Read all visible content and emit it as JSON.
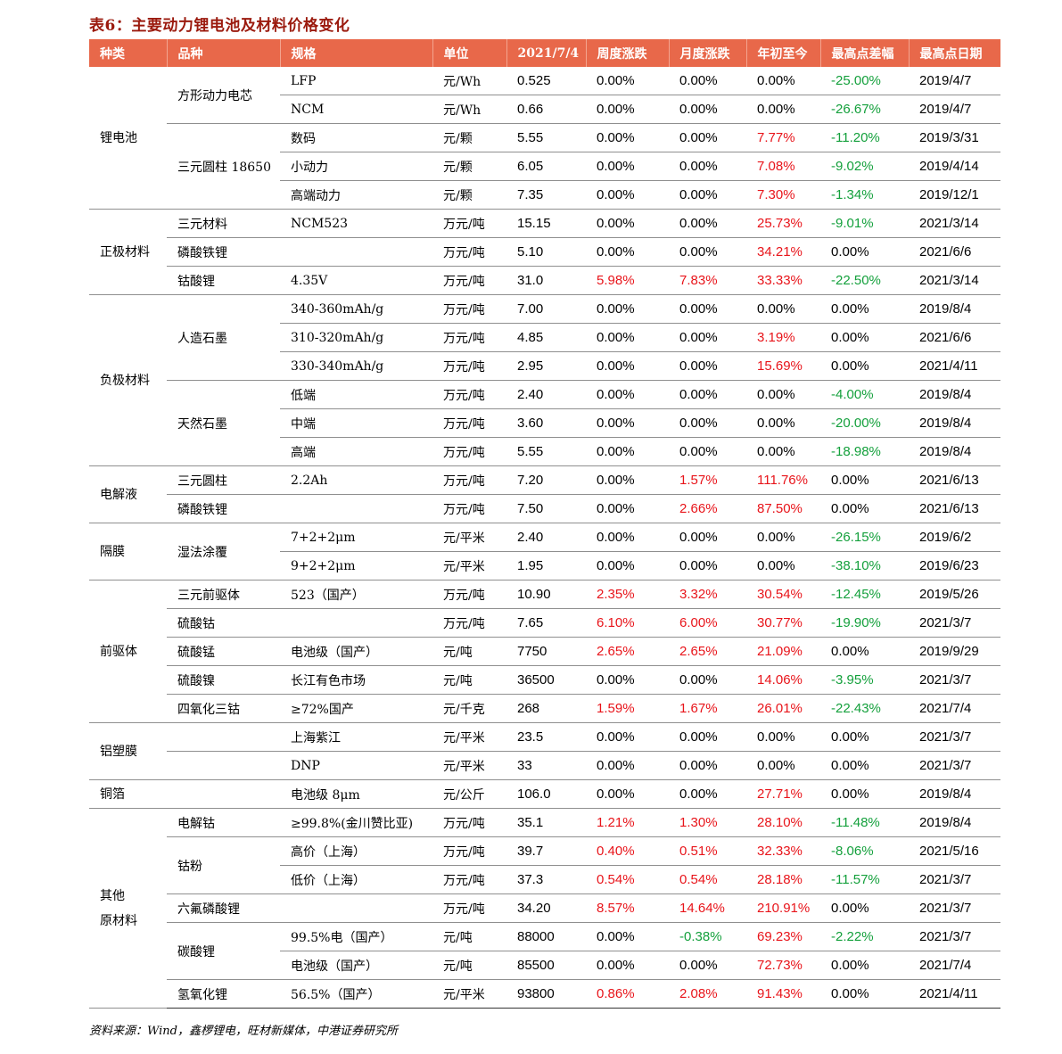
{
  "title": "表6：主要动力锂电池及材料价格变化",
  "source": "资料来源：Wind，鑫椤锂电，旺材新媒体，中港证券研究所",
  "headers": [
    "种类",
    "品种",
    "规格",
    "单位",
    "2021/7/4",
    "周度涨跌",
    "月度涨跌",
    "年初至今",
    "最高点差幅",
    "最高点日期"
  ],
  "categories": [
    {
      "label": "锂电池",
      "rows": 5
    },
    {
      "label": "正极材料",
      "rows": 3
    },
    {
      "label": "负极材料",
      "rows": 6
    },
    {
      "label": "电解液",
      "rows": 2
    },
    {
      "label": "隔膜",
      "rows": 2
    },
    {
      "label": "前驱体",
      "rows": 5
    },
    {
      "label": "铝塑膜",
      "rows": 2
    },
    {
      "label": "铜箔",
      "rows": 1
    },
    {
      "label": "其他\n原材料",
      "rows": 7
    }
  ],
  "rows": [
    {
      "variety": "方形动力电芯",
      "vspan": 2,
      "spec": "LFP",
      "unit": "元/Wh",
      "price": "0.525",
      "week": "0.00%",
      "month": "0.00%",
      "ytd": "0.00%",
      "gap": "-25.00%",
      "date": "2019/4/7",
      "c": [
        "",
        "",
        "",
        "down"
      ]
    },
    {
      "variety": null,
      "spec": "NCM",
      "unit": "元/Wh",
      "price": "0.66",
      "week": "0.00%",
      "month": "0.00%",
      "ytd": "0.00%",
      "gap": "-26.67%",
      "date": "2019/4/7",
      "c": [
        "",
        "",
        "",
        "down"
      ]
    },
    {
      "variety": "三元圆柱 18650",
      "vspan": 3,
      "spec": "数码",
      "unit": "元/颗",
      "price": "5.55",
      "week": "0.00%",
      "month": "0.00%",
      "ytd": "7.77%",
      "gap": "-11.20%",
      "date": "2019/3/31",
      "c": [
        "",
        "",
        "up",
        "down"
      ]
    },
    {
      "variety": null,
      "spec": "小动力",
      "unit": "元/颗",
      "price": "6.05",
      "week": "0.00%",
      "month": "0.00%",
      "ytd": "7.08%",
      "gap": "-9.02%",
      "date": "2019/4/14",
      "c": [
        "",
        "",
        "up",
        "down"
      ]
    },
    {
      "variety": null,
      "spec": "高端动力",
      "unit": "元/颗",
      "price": "7.35",
      "week": "0.00%",
      "month": "0.00%",
      "ytd": "7.30%",
      "gap": "-1.34%",
      "date": "2019/12/1",
      "c": [
        "",
        "",
        "up",
        "down"
      ]
    },
    {
      "variety": "三元材料",
      "vspan": 1,
      "spec": "NCM523",
      "unit": "万元/吨",
      "price": "15.15",
      "week": "0.00%",
      "month": "0.00%",
      "ytd": "25.73%",
      "gap": "-9.01%",
      "date": "2021/3/14",
      "c": [
        "",
        "",
        "up",
        "down"
      ]
    },
    {
      "variety": "磷酸铁锂",
      "vspan": 1,
      "spec": "",
      "unit": "万元/吨",
      "price": "5.10",
      "week": "0.00%",
      "month": "0.00%",
      "ytd": "34.21%",
      "gap": "0.00%",
      "date": "2021/6/6",
      "c": [
        "",
        "",
        "up",
        ""
      ]
    },
    {
      "variety": "钴酸锂",
      "vspan": 1,
      "spec": "4.35V",
      "unit": "万元/吨",
      "price": "31.0",
      "week": "5.98%",
      "month": "7.83%",
      "ytd": "33.33%",
      "gap": "-22.50%",
      "date": "2021/3/14",
      "c": [
        "up",
        "up",
        "up",
        "down"
      ]
    },
    {
      "variety": "人造石墨",
      "vspan": 3,
      "spec": "340-360mAh/g",
      "unit": "万元/吨",
      "price": "7.00",
      "week": "0.00%",
      "month": "0.00%",
      "ytd": "0.00%",
      "gap": "0.00%",
      "date": "2019/8/4",
      "c": [
        "",
        "",
        "",
        ""
      ]
    },
    {
      "variety": null,
      "spec": "310-320mAh/g",
      "unit": "万元/吨",
      "price": "4.85",
      "week": "0.00%",
      "month": "0.00%",
      "ytd": "3.19%",
      "gap": "0.00%",
      "date": "2021/6/6",
      "c": [
        "",
        "",
        "up",
        ""
      ]
    },
    {
      "variety": null,
      "spec": "330-340mAh/g",
      "unit": "万元/吨",
      "price": "2.95",
      "week": "0.00%",
      "month": "0.00%",
      "ytd": "15.69%",
      "gap": "0.00%",
      "date": "2021/4/11",
      "c": [
        "",
        "",
        "up",
        ""
      ]
    },
    {
      "variety": "天然石墨",
      "vspan": 3,
      "spec": "低端",
      "unit": "万元/吨",
      "price": "2.40",
      "week": "0.00%",
      "month": "0.00%",
      "ytd": "0.00%",
      "gap": "-4.00%",
      "date": "2019/8/4",
      "c": [
        "",
        "",
        "",
        "down"
      ]
    },
    {
      "variety": null,
      "spec": "中端",
      "unit": "万元/吨",
      "price": "3.60",
      "week": "0.00%",
      "month": "0.00%",
      "ytd": "0.00%",
      "gap": "-20.00%",
      "date": "2019/8/4",
      "c": [
        "",
        "",
        "",
        "down"
      ]
    },
    {
      "variety": null,
      "spec": "高端",
      "unit": "万元/吨",
      "price": "5.55",
      "week": "0.00%",
      "month": "0.00%",
      "ytd": "0.00%",
      "gap": "-18.98%",
      "date": "2019/8/4",
      "c": [
        "",
        "",
        "",
        "down"
      ]
    },
    {
      "variety": "三元圆柱",
      "vspan": 1,
      "spec": "2.2Ah",
      "unit": "万元/吨",
      "price": "7.20",
      "week": "0.00%",
      "month": "1.57%",
      "ytd": "111.76%",
      "gap": "0.00%",
      "date": "2021/6/13",
      "c": [
        "",
        "up",
        "up",
        ""
      ]
    },
    {
      "variety": "磷酸铁锂",
      "vspan": 1,
      "spec": "",
      "unit": "万元/吨",
      "price": "7.50",
      "week": "0.00%",
      "month": "2.66%",
      "ytd": "87.50%",
      "gap": "0.00%",
      "date": "2021/6/13",
      "c": [
        "",
        "up",
        "up",
        ""
      ]
    },
    {
      "variety": "湿法涂覆",
      "vspan": 2,
      "spec": "7+2+2μm",
      "unit": "元/平米",
      "price": "2.40",
      "week": "0.00%",
      "month": "0.00%",
      "ytd": "0.00%",
      "gap": "-26.15%",
      "date": "2019/6/2",
      "c": [
        "",
        "",
        "",
        "down"
      ]
    },
    {
      "variety": null,
      "spec": "9+2+2μm",
      "unit": "元/平米",
      "price": "1.95",
      "week": "0.00%",
      "month": "0.00%",
      "ytd": "0.00%",
      "gap": "-38.10%",
      "date": "2019/6/23",
      "c": [
        "",
        "",
        "",
        "down"
      ]
    },
    {
      "variety": "三元前驱体",
      "vspan": 1,
      "spec": "523（国产）",
      "unit": "万元/吨",
      "price": "10.90",
      "week": "2.35%",
      "month": "3.32%",
      "ytd": "30.54%",
      "gap": "-12.45%",
      "date": "2019/5/26",
      "c": [
        "up",
        "up",
        "up",
        "down"
      ]
    },
    {
      "variety": "硫酸钴",
      "vspan": 1,
      "spec": "",
      "unit": "万元/吨",
      "price": "7.65",
      "week": "6.10%",
      "month": "6.00%",
      "ytd": "30.77%",
      "gap": "-19.90%",
      "date": "2021/3/7",
      "c": [
        "up",
        "up",
        "up",
        "down"
      ]
    },
    {
      "variety": "硫酸锰",
      "vspan": 1,
      "spec": "电池级（国产）",
      "unit": "元/吨",
      "price": "7750",
      "week": "2.65%",
      "month": "2.65%",
      "ytd": "21.09%",
      "gap": "0.00%",
      "date": "2019/9/29",
      "c": [
        "up",
        "up",
        "up",
        ""
      ]
    },
    {
      "variety": "硫酸镍",
      "vspan": 1,
      "spec": "长江有色市场",
      "unit": "元/吨",
      "price": "36500",
      "week": "0.00%",
      "month": "0.00%",
      "ytd": "14.06%",
      "gap": "-3.95%",
      "date": "2021/3/7",
      "c": [
        "",
        "",
        "up",
        "down"
      ]
    },
    {
      "variety": "四氧化三钴",
      "vspan": 1,
      "spec": "≥72%国产",
      "unit": "元/千克",
      "price": "268",
      "week": "1.59%",
      "month": "1.67%",
      "ytd": "26.01%",
      "gap": "-22.43%",
      "date": "2021/7/4",
      "c": [
        "up",
        "up",
        "up",
        "down"
      ]
    },
    {
      "variety": "",
      "vspan": 1,
      "spec": "上海紫江",
      "unit": "元/平米",
      "price": "23.5",
      "week": "0.00%",
      "month": "0.00%",
      "ytd": "0.00%",
      "gap": "0.00%",
      "date": "2021/3/7",
      "c": [
        "",
        "",
        "",
        ""
      ]
    },
    {
      "variety": "",
      "vspan": 1,
      "spec": "DNP",
      "unit": "元/平米",
      "price": "33",
      "week": "0.00%",
      "month": "0.00%",
      "ytd": "0.00%",
      "gap": "0.00%",
      "date": "2021/3/7",
      "c": [
        "",
        "",
        "",
        ""
      ]
    },
    {
      "variety": "",
      "vspan": 1,
      "spec": "电池级 8μm",
      "unit": "元/公斤",
      "price": "106.0",
      "week": "0.00%",
      "month": "0.00%",
      "ytd": "27.71%",
      "gap": "0.00%",
      "date": "2019/8/4",
      "c": [
        "",
        "",
        "up",
        ""
      ]
    },
    {
      "variety": "电解钴",
      "vspan": 1,
      "spec": "≥99.8%(金川赞比亚)",
      "unit": "万元/吨",
      "price": "35.1",
      "week": "1.21%",
      "month": "1.30%",
      "ytd": "28.10%",
      "gap": "-11.48%",
      "date": "2019/8/4",
      "c": [
        "up",
        "up",
        "up",
        "down"
      ]
    },
    {
      "variety": "钴粉",
      "vspan": 2,
      "spec": "高价（上海）",
      "unit": "万元/吨",
      "price": "39.7",
      "week": "0.40%",
      "month": "0.51%",
      "ytd": "32.33%",
      "gap": "-8.06%",
      "date": "2021/5/16",
      "c": [
        "up",
        "up",
        "up",
        "down"
      ]
    },
    {
      "variety": null,
      "spec": "低价（上海）",
      "unit": "万元/吨",
      "price": "37.3",
      "week": "0.54%",
      "month": "0.54%",
      "ytd": "28.18%",
      "gap": "-11.57%",
      "date": "2021/3/7",
      "c": [
        "up",
        "up",
        "up",
        "down"
      ]
    },
    {
      "variety": "六氟磷酸锂",
      "vspan": 1,
      "spec": "",
      "unit": "万元/吨",
      "price": "34.20",
      "week": "8.57%",
      "month": "14.64%",
      "ytd": "210.91%",
      "gap": "0.00%",
      "date": "2021/3/7",
      "c": [
        "up",
        "up",
        "up",
        ""
      ]
    },
    {
      "variety": "碳酸锂",
      "vspan": 2,
      "spec": "99.5%电（国产）",
      "unit": "元/吨",
      "price": "88000",
      "week": "0.00%",
      "month": "-0.38%",
      "ytd": "69.23%",
      "gap": "-2.22%",
      "date": "2021/3/7",
      "c": [
        "",
        "down",
        "up",
        "down"
      ]
    },
    {
      "variety": null,
      "spec": "电池级（国产）",
      "unit": "元/吨",
      "price": "85500",
      "week": "0.00%",
      "month": "0.00%",
      "ytd": "72.73%",
      "gap": "0.00%",
      "date": "2021/7/4",
      "c": [
        "",
        "",
        "up",
        ""
      ]
    },
    {
      "variety": "氢氧化锂",
      "vspan": 1,
      "spec": "56.5%（国产）",
      "unit": "元/平米",
      "price": "93800",
      "week": "0.86%",
      "month": "2.08%",
      "ytd": "91.43%",
      "gap": "0.00%",
      "date": "2021/4/11",
      "c": [
        "up",
        "up",
        "up",
        ""
      ]
    }
  ]
}
